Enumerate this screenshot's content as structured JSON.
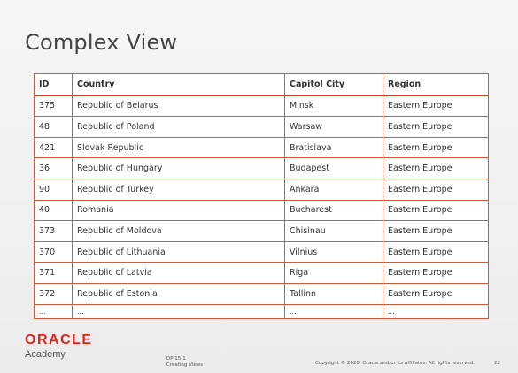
{
  "slide": {
    "title": "Complex View",
    "page_number": "22",
    "course_line1": "DP 15-1",
    "course_line2": "Creating Views",
    "copyright": "Copyright © 2020, Oracle and/or its affiliates. All rights reserved."
  },
  "logo": {
    "brand": "ORACLE",
    "sub": "Academy"
  },
  "table": {
    "headers": [
      "ID",
      "Country",
      "Capitol City",
      "Region"
    ],
    "rows": [
      [
        "375",
        "Republic of Belarus",
        "Minsk",
        "Eastern Europe"
      ],
      [
        "48",
        "Republic of Poland",
        "Warsaw",
        "Eastern Europe"
      ],
      [
        "421",
        "Slovak Republic",
        "Bratislava",
        "Eastern Europe"
      ],
      [
        "36",
        "Republic of Hungary",
        "Budapest",
        "Eastern Europe"
      ],
      [
        "90",
        "Republic of Turkey",
        "Ankara",
        "Eastern Europe"
      ],
      [
        "40",
        "Romania",
        "Bucharest",
        "Eastern Europe"
      ],
      [
        "373",
        "Republic of Moldova",
        "Chisinau",
        "Eastern Europe"
      ],
      [
        "370",
        "Republic of Lithuania",
        "Vilnius",
        "Eastern Europe"
      ],
      [
        "371",
        "Republic of Latvia",
        "Riga",
        "Eastern Europe"
      ],
      [
        "372",
        "Republic of Estonia",
        "Tallinn",
        "Eastern Europe"
      ],
      [
        "...",
        "...",
        "...",
        "..."
      ]
    ]
  },
  "colors": {
    "border": "#d0593e",
    "brand_red": "#e2231a"
  }
}
